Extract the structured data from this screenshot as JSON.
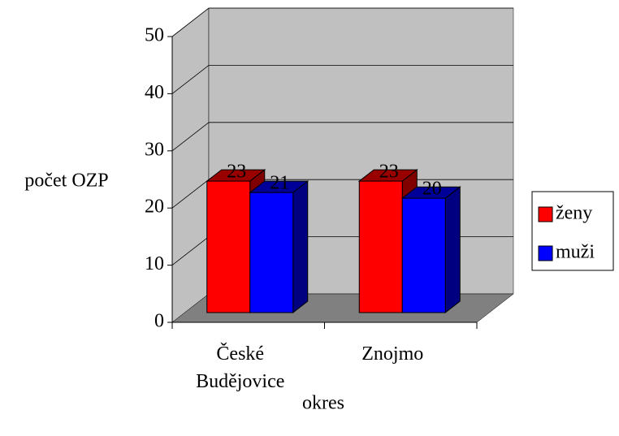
{
  "chart_data": {
    "type": "bar",
    "categories": [
      "České Budějovice",
      "Znojmo"
    ],
    "series": [
      {
        "name": "ženy",
        "color": "#ff0000",
        "values": [
          23,
          23
        ]
      },
      {
        "name": "muži",
        "color": "#0000ff",
        "values": [
          21,
          20
        ]
      }
    ],
    "ylabel": "počet OZP",
    "xlabel": "okres",
    "ylim": [
      0,
      50
    ],
    "yticks": [
      0,
      10,
      20,
      30,
      40,
      50
    ],
    "grid": true,
    "legend": "right"
  }
}
